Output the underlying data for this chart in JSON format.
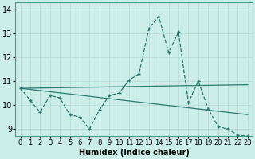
{
  "xlabel": "Humidex (Indice chaleur)",
  "xlim": [
    -0.5,
    23.5
  ],
  "ylim": [
    8.7,
    14.3
  ],
  "yticks": [
    9,
    10,
    11,
    12,
    13,
    14
  ],
  "xticks": [
    0,
    1,
    2,
    3,
    4,
    5,
    6,
    7,
    8,
    9,
    10,
    11,
    12,
    13,
    14,
    15,
    16,
    17,
    18,
    19,
    20,
    21,
    22,
    23
  ],
  "bg_color": "#cceee8",
  "grid_color": "#b8ddd6",
  "line_color": "#2a7a70",
  "main_line": {
    "x": [
      0,
      1,
      2,
      3,
      4,
      5,
      6,
      7,
      8,
      9,
      10,
      11,
      12,
      13,
      14,
      15,
      16,
      17,
      18,
      19,
      20,
      21,
      22,
      23
    ],
    "y": [
      10.7,
      10.2,
      9.7,
      10.4,
      10.3,
      9.6,
      9.5,
      9.0,
      9.8,
      10.4,
      10.5,
      11.05,
      11.3,
      13.2,
      13.7,
      12.2,
      13.05,
      10.1,
      11.0,
      9.85,
      9.1,
      9.0,
      8.75,
      8.7
    ]
  },
  "trend_lines": [
    {
      "x": [
        0,
        23
      ],
      "y": [
        10.7,
        10.85
      ]
    },
    {
      "x": [
        0,
        23
      ],
      "y": [
        10.7,
        9.6
      ]
    }
  ],
  "marker": "+",
  "markersize": 3,
  "linewidth": 0.9,
  "fontsize_label": 7,
  "fontsize_tick": 6
}
